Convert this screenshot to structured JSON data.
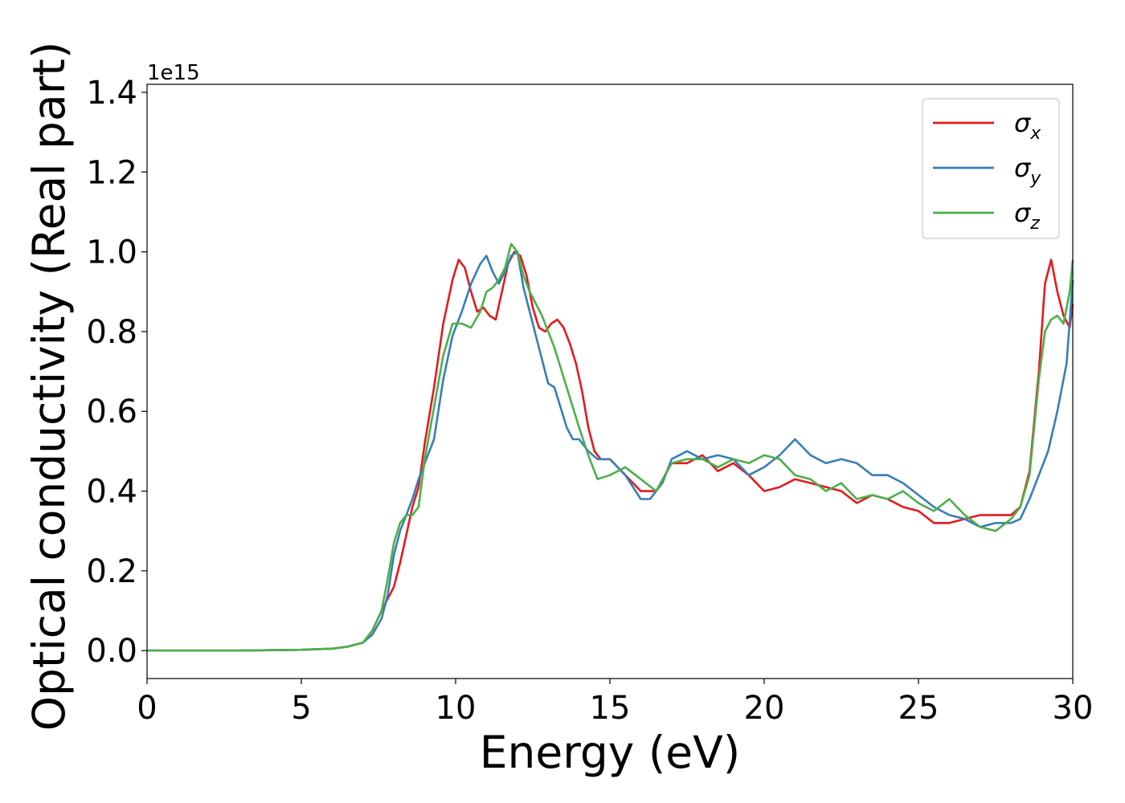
{
  "chart_data": {
    "type": "line",
    "title": "",
    "xlabel": "Energy (eV)",
    "ylabel": "Optical conductivity (Real part)",
    "y_offset_label": "1e15",
    "xlim": [
      0,
      30
    ],
    "ylim": [
      -0.07,
      1.42
    ],
    "x_ticks": [
      0,
      5,
      10,
      15,
      20,
      25,
      30
    ],
    "x_tick_labels": [
      "0",
      "5",
      "10",
      "15",
      "20",
      "25",
      "30"
    ],
    "y_ticks": [
      0.0,
      0.2,
      0.4,
      0.6,
      0.8,
      1.0,
      1.2,
      1.4
    ],
    "y_tick_labels": [
      "0.0",
      "0.2",
      "0.4",
      "0.6",
      "0.8",
      "1.0",
      "1.2",
      "1.4"
    ],
    "grid": false,
    "legend_position": "top-right",
    "series": [
      {
        "name": "σx",
        "legend_base": "σ",
        "legend_sub": "x",
        "color": "#e41a1c",
        "x": [
          0,
          1,
          2,
          3,
          4,
          5,
          6,
          6.5,
          7,
          7.3,
          7.6,
          7.8,
          8.0,
          8.2,
          8.4,
          8.6,
          8.8,
          9.0,
          9.3,
          9.6,
          9.9,
          10.1,
          10.3,
          10.5,
          10.7,
          10.9,
          11.1,
          11.3,
          11.5,
          11.7,
          11.9,
          12.1,
          12.3,
          12.5,
          12.7,
          12.9,
          13.1,
          13.3,
          13.5,
          13.7,
          13.9,
          14.1,
          14.3,
          14.5,
          14.7,
          15.0,
          15.5,
          16.0,
          16.5,
          17.0,
          17.5,
          18.0,
          18.5,
          19.0,
          19.5,
          20.0,
          20.5,
          21.0,
          21.5,
          22.0,
          22.5,
          23.0,
          23.5,
          24.0,
          24.5,
          25.0,
          25.5,
          26.0,
          26.5,
          27.0,
          27.5,
          28.0,
          28.3,
          28.6,
          28.9,
          29.1,
          29.3,
          29.5,
          29.7,
          29.9,
          30.0
        ],
        "values": [
          0,
          0,
          0,
          0,
          0.001,
          0.002,
          0.005,
          0.01,
          0.02,
          0.05,
          0.1,
          0.13,
          0.16,
          0.22,
          0.29,
          0.36,
          0.41,
          0.52,
          0.66,
          0.82,
          0.93,
          0.98,
          0.96,
          0.9,
          0.85,
          0.86,
          0.84,
          0.83,
          0.9,
          0.97,
          1.0,
          0.99,
          0.94,
          0.86,
          0.81,
          0.8,
          0.82,
          0.83,
          0.81,
          0.77,
          0.72,
          0.65,
          0.56,
          0.5,
          0.48,
          0.48,
          0.44,
          0.4,
          0.4,
          0.47,
          0.47,
          0.49,
          0.45,
          0.47,
          0.44,
          0.4,
          0.41,
          0.43,
          0.42,
          0.41,
          0.4,
          0.37,
          0.39,
          0.38,
          0.36,
          0.35,
          0.32,
          0.32,
          0.33,
          0.34,
          0.34,
          0.34,
          0.36,
          0.45,
          0.7,
          0.92,
          0.98,
          0.9,
          0.84,
          0.81,
          0.87
        ]
      },
      {
        "name": "σy",
        "legend_base": "σ",
        "legend_sub": "y",
        "color": "#377eb8",
        "x": [
          0,
          1,
          2,
          3,
          4,
          5,
          6,
          6.5,
          7,
          7.3,
          7.6,
          7.8,
          8.0,
          8.2,
          8.4,
          8.6,
          8.8,
          9.0,
          9.3,
          9.6,
          9.9,
          10.2,
          10.5,
          10.8,
          11.0,
          11.2,
          11.4,
          11.6,
          11.8,
          12.0,
          12.2,
          12.4,
          12.6,
          12.8,
          13.0,
          13.2,
          13.4,
          13.6,
          13.8,
          14.0,
          14.3,
          14.6,
          15.0,
          15.5,
          16.0,
          16.3,
          16.7,
          17.0,
          17.5,
          18.0,
          18.5,
          19.0,
          19.5,
          20.0,
          20.5,
          21.0,
          21.5,
          22.0,
          22.5,
          23.0,
          23.5,
          24.0,
          24.5,
          25.0,
          25.5,
          26.0,
          26.5,
          27.0,
          27.5,
          28.0,
          28.3,
          28.6,
          28.9,
          29.2,
          29.5,
          29.8,
          30.0
        ],
        "values": [
          0,
          0,
          0,
          0,
          0.001,
          0.002,
          0.005,
          0.01,
          0.02,
          0.04,
          0.08,
          0.14,
          0.24,
          0.3,
          0.34,
          0.38,
          0.43,
          0.47,
          0.53,
          0.68,
          0.79,
          0.85,
          0.92,
          0.97,
          0.99,
          0.95,
          0.92,
          0.95,
          0.99,
          1.0,
          0.91,
          0.85,
          0.79,
          0.73,
          0.67,
          0.66,
          0.61,
          0.56,
          0.53,
          0.53,
          0.5,
          0.48,
          0.48,
          0.44,
          0.38,
          0.38,
          0.42,
          0.48,
          0.5,
          0.48,
          0.49,
          0.48,
          0.44,
          0.46,
          0.49,
          0.53,
          0.49,
          0.47,
          0.48,
          0.47,
          0.44,
          0.44,
          0.42,
          0.39,
          0.36,
          0.34,
          0.33,
          0.31,
          0.32,
          0.32,
          0.33,
          0.38,
          0.44,
          0.5,
          0.6,
          0.72,
          0.93
        ]
      },
      {
        "name": "σz",
        "legend_base": "σ",
        "legend_sub": "z",
        "color": "#4daf4a",
        "x": [
          0,
          1,
          2,
          3,
          4,
          5,
          6,
          6.5,
          7,
          7.3,
          7.6,
          7.8,
          8.0,
          8.2,
          8.4,
          8.6,
          8.8,
          9.0,
          9.3,
          9.6,
          9.9,
          10.2,
          10.5,
          10.8,
          11.0,
          11.2,
          11.4,
          11.6,
          11.8,
          12.0,
          12.2,
          12.4,
          12.6,
          12.8,
          13.0,
          13.2,
          13.4,
          13.6,
          13.8,
          14.0,
          14.3,
          14.6,
          15.0,
          15.5,
          16.0,
          16.5,
          17.0,
          17.5,
          18.0,
          18.5,
          19.0,
          19.5,
          20.0,
          20.5,
          21.0,
          21.5,
          22.0,
          22.5,
          23.0,
          23.5,
          24.0,
          24.5,
          25.0,
          25.5,
          26.0,
          26.5,
          27.0,
          27.5,
          28.0,
          28.3,
          28.6,
          28.9,
          29.1,
          29.3,
          29.5,
          29.7,
          29.9,
          30.0
        ],
        "values": [
          0,
          0,
          0,
          0,
          0.001,
          0.002,
          0.005,
          0.01,
          0.02,
          0.05,
          0.1,
          0.18,
          0.27,
          0.32,
          0.34,
          0.34,
          0.36,
          0.48,
          0.61,
          0.74,
          0.82,
          0.82,
          0.81,
          0.85,
          0.9,
          0.91,
          0.93,
          0.96,
          1.02,
          1.0,
          0.94,
          0.9,
          0.87,
          0.84,
          0.8,
          0.76,
          0.71,
          0.66,
          0.61,
          0.56,
          0.49,
          0.43,
          0.44,
          0.46,
          0.43,
          0.4,
          0.47,
          0.48,
          0.48,
          0.46,
          0.48,
          0.47,
          0.49,
          0.48,
          0.44,
          0.43,
          0.4,
          0.42,
          0.38,
          0.39,
          0.38,
          0.4,
          0.37,
          0.35,
          0.38,
          0.34,
          0.31,
          0.3,
          0.33,
          0.36,
          0.44,
          0.68,
          0.8,
          0.83,
          0.84,
          0.82,
          0.9,
          0.98
        ]
      }
    ]
  }
}
